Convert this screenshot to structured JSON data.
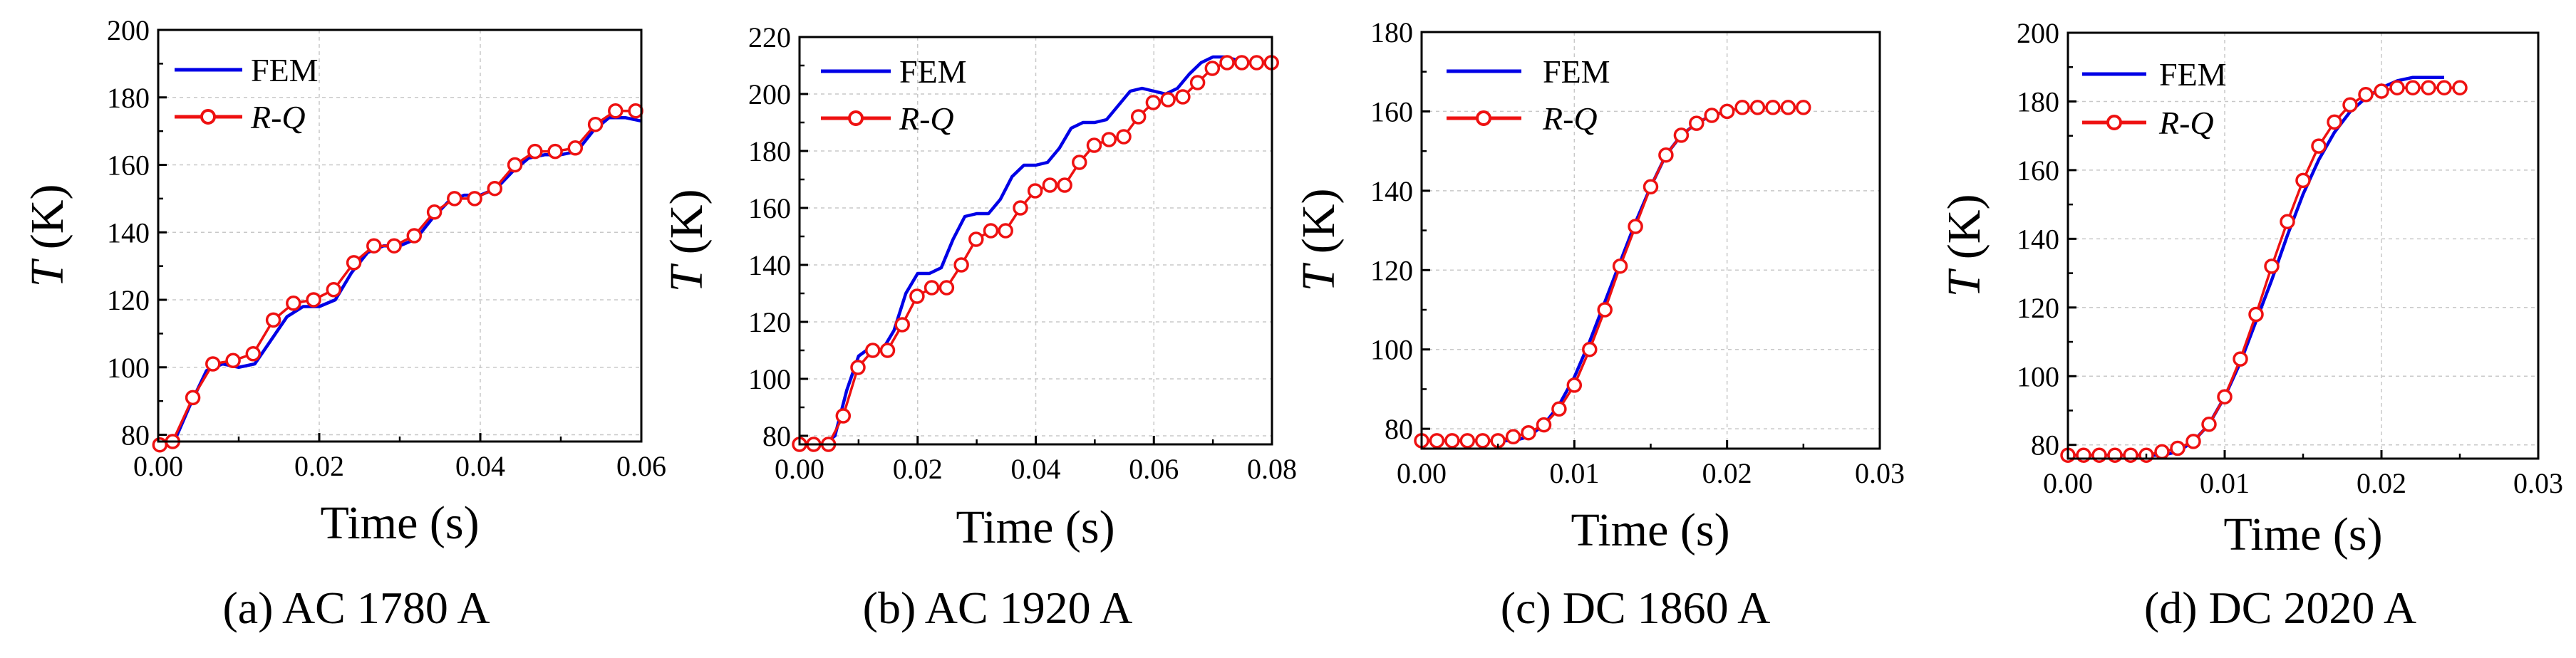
{
  "figure": {
    "colors": {
      "fem": "#0000e6",
      "rq": "#ee1111",
      "grid": "#c8c8c8",
      "axis": "#000000"
    }
  },
  "chart_data": [
    {
      "type": "line",
      "caption": "(a) AC 1780 A",
      "xlabel": "Time (s)",
      "ylabel_italic": "T",
      "ylabel_rest": " (K)",
      "xlim": [
        0,
        0.06
      ],
      "ylim": [
        78,
        200
      ],
      "xticks": [
        0,
        0.02,
        0.04,
        0.06
      ],
      "xtick_labels": [
        "0.00",
        "0.02",
        "0.04",
        "0.06"
      ],
      "yticks": [
        80,
        100,
        120,
        140,
        160,
        180,
        200
      ],
      "ytick_labels": [
        "80",
        "100",
        "120",
        "140",
        "160",
        "180",
        "200"
      ],
      "legend": [
        "FEM",
        "R-Q"
      ],
      "series": [
        {
          "name": "FEM",
          "x": [
            0,
            0.002,
            0.004,
            0.006,
            0.008,
            0.01,
            0.012,
            0.014,
            0.016,
            0.018,
            0.02,
            0.022,
            0.024,
            0.026,
            0.028,
            0.03,
            0.032,
            0.034,
            0.036,
            0.038,
            0.04,
            0.042,
            0.044,
            0.046,
            0.048,
            0.05,
            0.052,
            0.054,
            0.056,
            0.058,
            0.06
          ],
          "y": [
            77,
            78,
            89,
            99,
            101,
            100,
            101,
            108,
            115,
            118,
            118,
            120,
            128,
            134,
            136,
            136,
            138,
            144,
            149,
            151,
            151,
            153,
            158,
            162,
            163,
            163,
            164,
            170,
            174,
            174,
            173
          ]
        },
        {
          "name": "R-Q",
          "x": [
            0.0002,
            0.0018,
            0.0043,
            0.0068,
            0.0093,
            0.0118,
            0.0143,
            0.0168,
            0.0193,
            0.0218,
            0.0243,
            0.0268,
            0.0293,
            0.0318,
            0.0343,
            0.0368,
            0.0393,
            0.0418,
            0.0443,
            0.0468,
            0.0493,
            0.0518,
            0.0543,
            0.0568,
            0.0593
          ],
          "y": [
            77,
            78,
            91,
            101,
            102,
            104,
            114,
            119,
            120,
            123,
            131,
            136,
            136,
            139,
            146,
            150,
            150,
            153,
            160,
            164,
            164,
            165,
            172,
            176,
            176
          ]
        }
      ]
    },
    {
      "type": "line",
      "caption": "(b) AC 1920 A",
      "xlabel": "Time (s)",
      "ylabel_italic": "T",
      "ylabel_rest": " (K)",
      "xlim": [
        0,
        0.08
      ],
      "ylim": [
        77,
        220
      ],
      "xticks": [
        0,
        0.02,
        0.04,
        0.06,
        0.08
      ],
      "xtick_labels": [
        "0.00",
        "0.02",
        "0.04",
        "0.06",
        "0.08"
      ],
      "yticks": [
        80,
        100,
        120,
        140,
        160,
        180,
        200,
        220
      ],
      "ytick_labels": [
        "80",
        "100",
        "120",
        "140",
        "160",
        "180",
        "200",
        "220"
      ],
      "legend": [
        "FEM",
        "R-Q"
      ],
      "series": [
        {
          "name": "FEM",
          "x": [
            0,
            0.004,
            0.006,
            0.008,
            0.01,
            0.012,
            0.014,
            0.016,
            0.018,
            0.02,
            0.022,
            0.024,
            0.026,
            0.028,
            0.03,
            0.032,
            0.034,
            0.036,
            0.038,
            0.04,
            0.042,
            0.044,
            0.046,
            0.048,
            0.05,
            0.052,
            0.054,
            0.056,
            0.058,
            0.06,
            0.062,
            0.064,
            0.066,
            0.068,
            0.07,
            0.072,
            0.074
          ],
          "y": [
            77,
            77,
            80,
            96,
            108,
            111,
            110,
            117,
            130,
            137,
            137,
            139,
            149,
            157,
            158,
            158,
            163,
            171,
            175,
            175,
            176,
            181,
            188,
            190,
            190,
            191,
            196,
            201,
            202,
            201,
            200,
            202,
            207,
            211,
            213,
            213,
            212
          ]
        },
        {
          "name": "R-Q",
          "x": [
            0,
            0.0024,
            0.0049,
            0.0074,
            0.0099,
            0.0124,
            0.0149,
            0.0174,
            0.0199,
            0.0224,
            0.0249,
            0.0274,
            0.0299,
            0.0324,
            0.0349,
            0.0374,
            0.0399,
            0.0424,
            0.0449,
            0.0474,
            0.0499,
            0.0524,
            0.0549,
            0.0574,
            0.0599,
            0.0624,
            0.0649,
            0.0674,
            0.0699,
            0.0724,
            0.0749,
            0.0774,
            0.0799
          ],
          "y": [
            77,
            77,
            77,
            87,
            104,
            110,
            110,
            119,
            129,
            132,
            132,
            140,
            149,
            152,
            152,
            160,
            166,
            168,
            168,
            176,
            182,
            184,
            185,
            192,
            197,
            198,
            199,
            204,
            209,
            211,
            211,
            211,
            211
          ]
        }
      ]
    },
    {
      "type": "line",
      "caption": "(c) DC 1860 A",
      "xlabel": "Time (s)",
      "ylabel_italic": "T",
      "ylabel_rest": " (K)",
      "xlim": [
        0,
        0.03
      ],
      "ylim": [
        75,
        180
      ],
      "xticks": [
        0,
        0.01,
        0.02,
        0.03
      ],
      "xtick_labels": [
        "0.00",
        "0.01",
        "0.02",
        "0.03"
      ],
      "yticks": [
        80,
        100,
        120,
        140,
        160,
        180
      ],
      "ytick_labels": [
        "80",
        "100",
        "120",
        "140",
        "160",
        "180"
      ],
      "legend": [
        "FEM",
        "R-Q"
      ],
      "series": [
        {
          "name": "FEM",
          "x": [
            0,
            0.006,
            0.007,
            0.008,
            0.009,
            0.01,
            0.011,
            0.012,
            0.013,
            0.014,
            0.015,
            0.016,
            0.017,
            0.018,
            0.019,
            0.02
          ],
          "y": [
            77,
            77,
            78,
            81,
            86,
            93,
            102,
            112,
            122,
            132,
            141,
            149,
            154,
            157,
            159,
            160
          ]
        },
        {
          "name": "R-Q",
          "x": [
            0,
            0.001,
            0.002,
            0.003,
            0.004,
            0.005,
            0.006,
            0.007,
            0.008,
            0.009,
            0.01,
            0.011,
            0.012,
            0.013,
            0.014,
            0.015,
            0.016,
            0.017,
            0.018,
            0.019,
            0.02,
            0.021,
            0.022,
            0.023,
            0.024,
            0.025
          ],
          "y": [
            77,
            77,
            77,
            77,
            77,
            77,
            78,
            79,
            81,
            85,
            91,
            100,
            110,
            121,
            131,
            141,
            149,
            154,
            157,
            159,
            160,
            161,
            161,
            161,
            161,
            161
          ]
        }
      ]
    },
    {
      "type": "line",
      "caption": "(d) DC 2020 A",
      "xlabel": "Time (s)",
      "ylabel_italic": "T",
      "ylabel_rest": " (K)",
      "xlim": [
        0,
        0.03
      ],
      "ylim": [
        76,
        200
      ],
      "xticks": [
        0,
        0.01,
        0.02,
        0.03
      ],
      "xtick_labels": [
        "0.00",
        "0.01",
        "0.02",
        "0.03"
      ],
      "yticks": [
        80,
        100,
        120,
        140,
        160,
        180,
        200
      ],
      "ytick_labels": [
        "80",
        "100",
        "120",
        "140",
        "160",
        "180",
        "200"
      ],
      "legend": [
        "FEM",
        "R-Q"
      ],
      "series": [
        {
          "name": "FEM",
          "x": [
            0,
            0.006,
            0.007,
            0.008,
            0.009,
            0.01,
            0.011,
            0.012,
            0.013,
            0.014,
            0.015,
            0.016,
            0.017,
            0.018,
            0.019,
            0.02,
            0.021,
            0.022,
            0.023,
            0.024
          ],
          "y": [
            77,
            77,
            78,
            81,
            86,
            94,
            104,
            116,
            128,
            141,
            153,
            163,
            171,
            177,
            181,
            184,
            186,
            187,
            187,
            187
          ]
        },
        {
          "name": "R-Q",
          "x": [
            0,
            0.001,
            0.002,
            0.003,
            0.004,
            0.005,
            0.006,
            0.007,
            0.008,
            0.009,
            0.01,
            0.011,
            0.012,
            0.013,
            0.014,
            0.015,
            0.016,
            0.017,
            0.018,
            0.019,
            0.02,
            0.021,
            0.022,
            0.023,
            0.024,
            0.025
          ],
          "y": [
            77,
            77,
            77,
            77,
            77,
            77,
            78,
            79,
            81,
            86,
            94,
            105,
            118,
            132,
            145,
            157,
            167,
            174,
            179,
            182,
            183,
            184,
            184,
            184,
            184,
            184
          ]
        }
      ]
    }
  ]
}
